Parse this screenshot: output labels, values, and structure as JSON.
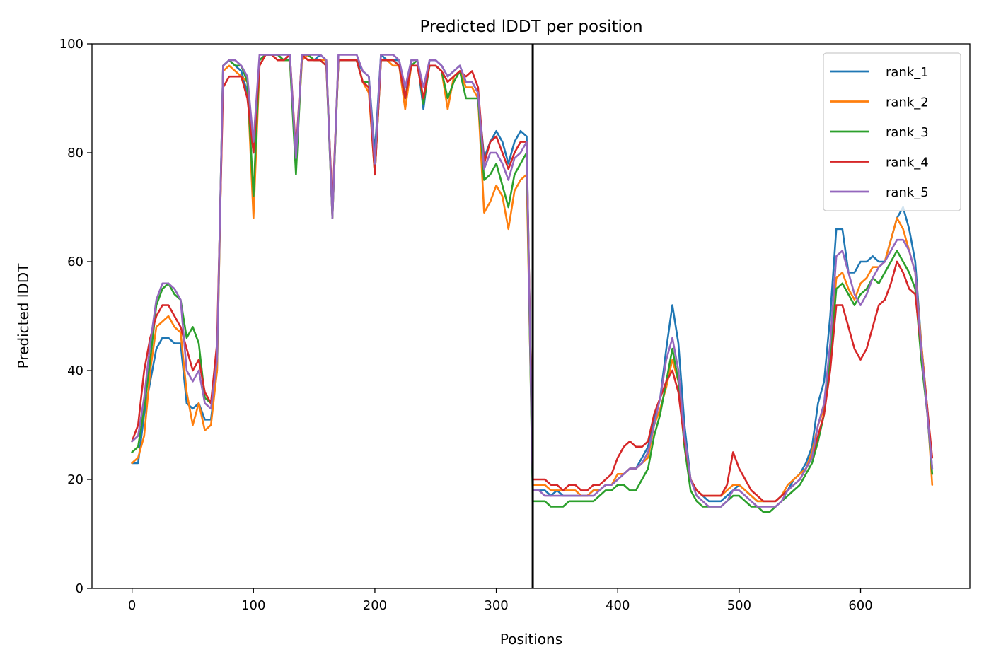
{
  "chart_data": {
    "type": "line",
    "title": "Predicted lDDT per position",
    "xlabel": "Positions",
    "ylabel": "Predicted lDDT",
    "xlim": [
      -33,
      690
    ],
    "ylim": [
      0,
      100
    ],
    "xticks": [
      0,
      100,
      200,
      300,
      400,
      500,
      600
    ],
    "yticks": [
      0,
      20,
      40,
      60,
      80,
      100
    ],
    "grid": false,
    "legend_position": "top-right",
    "vline_x": 330,
    "x": [
      0,
      5,
      10,
      15,
      20,
      25,
      30,
      35,
      40,
      45,
      50,
      55,
      60,
      65,
      70,
      75,
      80,
      85,
      90,
      95,
      100,
      105,
      110,
      115,
      120,
      125,
      130,
      135,
      140,
      145,
      150,
      155,
      160,
      165,
      170,
      175,
      180,
      185,
      190,
      195,
      200,
      205,
      210,
      215,
      220,
      225,
      230,
      235,
      240,
      245,
      250,
      255,
      260,
      265,
      270,
      275,
      280,
      285,
      290,
      295,
      300,
      305,
      310,
      315,
      320,
      325,
      330,
      335,
      340,
      345,
      350,
      355,
      360,
      365,
      370,
      375,
      380,
      385,
      390,
      395,
      400,
      405,
      410,
      415,
      420,
      425,
      430,
      435,
      440,
      445,
      450,
      455,
      460,
      465,
      470,
      475,
      480,
      485,
      490,
      495,
      500,
      505,
      510,
      515,
      520,
      525,
      530,
      535,
      540,
      545,
      550,
      555,
      560,
      565,
      570,
      575,
      580,
      585,
      590,
      595,
      600,
      605,
      610,
      615,
      620,
      625,
      630,
      635,
      640,
      645,
      650,
      655,
      659
    ],
    "series": [
      {
        "name": "rank_1",
        "color": "#1f77b4",
        "values": [
          23,
          23,
          32,
          38,
          44,
          46,
          46,
          45,
          45,
          34,
          33,
          34,
          31,
          31,
          40,
          96,
          97,
          96,
          95,
          91,
          80,
          97,
          98,
          98,
          98,
          97,
          98,
          78,
          98,
          98,
          97,
          98,
          97,
          69,
          97,
          97,
          97,
          97,
          95,
          94,
          80,
          98,
          97,
          97,
          97,
          90,
          97,
          97,
          88,
          97,
          97,
          96,
          94,
          95,
          96,
          93,
          93,
          91,
          79,
          82,
          84,
          82,
          78,
          82,
          84,
          83,
          18,
          18,
          18,
          17,
          18,
          17,
          17,
          17,
          17,
          17,
          18,
          18,
          19,
          19,
          20,
          21,
          22,
          22,
          24,
          26,
          31,
          35,
          44,
          52,
          45,
          30,
          20,
          18,
          17,
          16,
          16,
          16,
          17,
          18,
          19,
          18,
          17,
          16,
          16,
          16,
          16,
          17,
          18,
          20,
          21,
          23,
          26,
          34,
          38,
          50,
          66,
          66,
          58,
          58,
          60,
          60,
          61,
          60,
          60,
          64,
          68,
          70,
          66,
          60,
          45,
          33,
          22
        ]
      },
      {
        "name": "rank_2",
        "color": "#ff7f0e",
        "values": [
          23,
          24,
          28,
          40,
          48,
          49,
          50,
          48,
          47,
          36,
          30,
          34,
          29,
          30,
          40,
          95,
          96,
          95,
          94,
          93,
          68,
          96,
          98,
          98,
          97,
          97,
          97,
          78,
          97,
          98,
          97,
          97,
          97,
          68,
          97,
          97,
          97,
          97,
          93,
          91,
          76,
          97,
          97,
          96,
          96,
          88,
          96,
          96,
          90,
          96,
          96,
          95,
          88,
          94,
          95,
          92,
          92,
          90,
          69,
          71,
          74,
          72,
          66,
          73,
          75,
          76,
          19,
          19,
          19,
          18,
          18,
          18,
          18,
          18,
          17,
          17,
          18,
          18,
          19,
          19,
          21,
          21,
          22,
          22,
          23,
          24,
          30,
          33,
          37,
          42,
          38,
          27,
          20,
          18,
          17,
          17,
          17,
          17,
          18,
          19,
          19,
          18,
          17,
          16,
          16,
          16,
          16,
          17,
          19,
          20,
          21,
          22,
          25,
          30,
          33,
          44,
          57,
          58,
          55,
          53,
          56,
          57,
          59,
          59,
          60,
          64,
          68,
          66,
          62,
          58,
          45,
          33,
          19
        ]
      },
      {
        "name": "rank_3",
        "color": "#2ca02c",
        "values": [
          25,
          26,
          33,
          42,
          52,
          55,
          56,
          54,
          53,
          46,
          48,
          45,
          35,
          34,
          42,
          96,
          97,
          96,
          96,
          93,
          72,
          97,
          98,
          98,
          98,
          97,
          97,
          76,
          98,
          98,
          97,
          97,
          96,
          68,
          97,
          97,
          97,
          97,
          93,
          93,
          76,
          97,
          97,
          97,
          96,
          90,
          96,
          97,
          89,
          96,
          96,
          95,
          90,
          93,
          95,
          90,
          90,
          90,
          75,
          76,
          78,
          74,
          70,
          76,
          78,
          80,
          16,
          16,
          16,
          15,
          15,
          15,
          16,
          16,
          16,
          16,
          16,
          17,
          18,
          18,
          19,
          19,
          18,
          18,
          20,
          22,
          28,
          32,
          38,
          44,
          38,
          26,
          18,
          16,
          15,
          15,
          15,
          15,
          16,
          17,
          17,
          16,
          15,
          15,
          14,
          14,
          15,
          16,
          17,
          18,
          19,
          21,
          23,
          27,
          32,
          42,
          55,
          56,
          54,
          52,
          54,
          55,
          57,
          56,
          58,
          60,
          62,
          60,
          58,
          55,
          42,
          32,
          21
        ]
      },
      {
        "name": "rank_4",
        "color": "#d62728",
        "values": [
          27,
          30,
          40,
          46,
          50,
          52,
          52,
          50,
          48,
          44,
          40,
          42,
          36,
          34,
          45,
          92,
          94,
          94,
          94,
          90,
          80,
          96,
          98,
          98,
          97,
          97,
          98,
          80,
          98,
          97,
          97,
          97,
          96,
          70,
          97,
          97,
          97,
          97,
          93,
          92,
          76,
          97,
          97,
          97,
          96,
          90,
          96,
          96,
          90,
          96,
          96,
          95,
          93,
          94,
          95,
          94,
          95,
          92,
          78,
          82,
          83,
          80,
          77,
          80,
          82,
          82,
          20,
          20,
          20,
          19,
          19,
          18,
          19,
          19,
          18,
          18,
          19,
          19,
          20,
          21,
          24,
          26,
          27,
          26,
          26,
          27,
          32,
          35,
          38,
          40,
          36,
          27,
          20,
          18,
          17,
          17,
          17,
          17,
          19,
          25,
          22,
          20,
          18,
          17,
          16,
          16,
          16,
          17,
          18,
          19,
          20,
          22,
          24,
          28,
          32,
          40,
          52,
          52,
          48,
          44,
          42,
          44,
          48,
          52,
          53,
          56,
          60,
          58,
          55,
          54,
          44,
          33,
          24
        ]
      },
      {
        "name": "rank_5",
        "color": "#9467bd",
        "values": [
          27,
          28,
          35,
          45,
          53,
          56,
          56,
          55,
          53,
          40,
          38,
          40,
          34,
          33,
          42,
          96,
          97,
          97,
          96,
          94,
          82,
          98,
          98,
          98,
          98,
          98,
          98,
          79,
          98,
          98,
          98,
          98,
          97,
          68,
          98,
          98,
          98,
          98,
          95,
          94,
          78,
          98,
          98,
          98,
          97,
          92,
          97,
          97,
          92,
          97,
          97,
          96,
          94,
          95,
          96,
          93,
          93,
          91,
          77,
          80,
          80,
          78,
          75,
          79,
          80,
          82,
          18,
          18,
          17,
          17,
          17,
          17,
          17,
          17,
          17,
          17,
          17,
          18,
          19,
          19,
          20,
          21,
          22,
          22,
          23,
          25,
          30,
          35,
          42,
          46,
          40,
          28,
          20,
          17,
          16,
          15,
          15,
          15,
          16,
          18,
          18,
          17,
          16,
          15,
          15,
          15,
          15,
          16,
          18,
          19,
          20,
          22,
          24,
          30,
          34,
          45,
          61,
          62,
          58,
          54,
          52,
          54,
          57,
          59,
          60,
          62,
          64,
          64,
          62,
          58,
          44,
          32,
          22
        ]
      }
    ]
  }
}
